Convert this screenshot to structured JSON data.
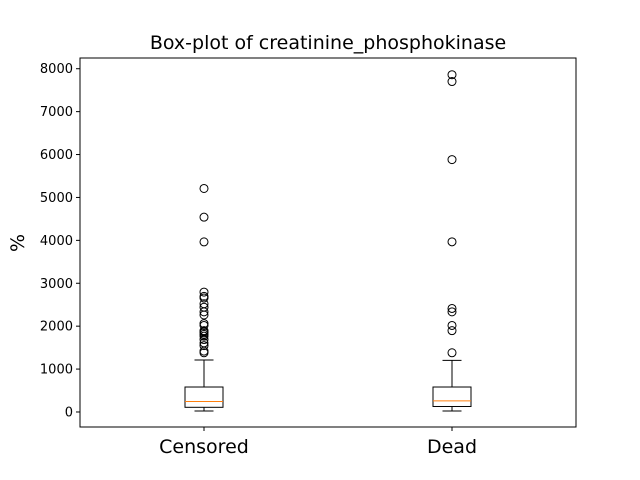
{
  "chart_data": {
    "type": "box",
    "title": "Box-plot of creatinine_phosphokinase",
    "xlabel": "",
    "ylabel": "%",
    "ylim": [
      -350,
      8250
    ],
    "yticks": [
      0,
      1000,
      2000,
      3000,
      4000,
      5000,
      6000,
      7000,
      8000
    ],
    "grid": false,
    "categories": [
      "Censored",
      "Dead"
    ],
    "boxes": [
      {
        "category": "Censored",
        "whisker_low": 23,
        "q1": 109,
        "median": 245,
        "q3": 582,
        "whisker_high": 1211,
        "outliers": [
          5209,
          4540,
          3964,
          2794,
          2695,
          2656,
          2522,
          2442,
          2334,
          2261,
          2060,
          2017,
          1896,
          1876,
          1846,
          1808,
          1767,
          1688,
          1610,
          1548,
          1419,
          1380
        ]
      },
      {
        "category": "Dead",
        "whisker_low": 23,
        "q1": 128,
        "median": 259,
        "q3": 582,
        "whisker_high": 1202,
        "outliers": [
          7861,
          7702,
          5882,
          3966,
          2413,
          2334,
          2017,
          1896,
          1380
        ]
      }
    ],
    "colors": {
      "box": "#000000",
      "median": "#ff7f0e",
      "outlier": "#000000"
    }
  }
}
